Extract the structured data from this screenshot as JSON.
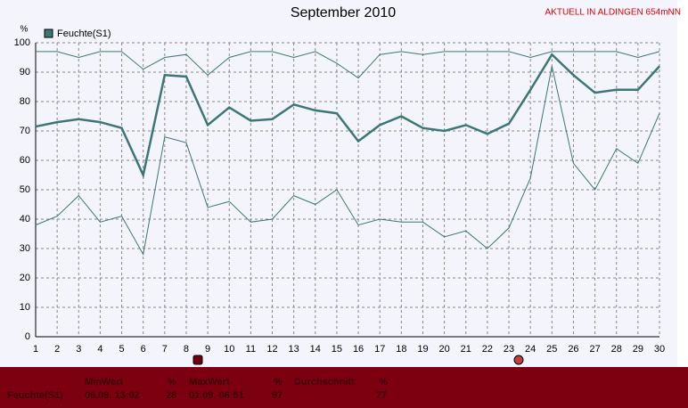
{
  "chart_data": {
    "type": "line",
    "title": "September 2010",
    "annotation": "AKTUELL IN ALDINGEN 654mNN",
    "y_label": "%",
    "x": [
      1,
      2,
      3,
      4,
      5,
      6,
      7,
      8,
      9,
      10,
      11,
      12,
      13,
      14,
      15,
      16,
      17,
      18,
      19,
      20,
      21,
      22,
      23,
      24,
      25,
      26,
      27,
      28,
      29,
      30
    ],
    "xlim": [
      1,
      30
    ],
    "xticks": [
      1,
      2,
      3,
      4,
      5,
      6,
      7,
      8,
      9,
      10,
      11,
      12,
      13,
      14,
      15,
      16,
      17,
      18,
      19,
      20,
      21,
      22,
      23,
      24,
      25,
      26,
      27,
      28,
      29,
      30
    ],
    "ylim": [
      0,
      100
    ],
    "yticks": [
      0,
      10,
      20,
      30,
      40,
      50,
      60,
      70,
      80,
      90,
      100
    ],
    "grid": true,
    "legend": "top-left",
    "series": [
      {
        "name": "Feuchte(S1)",
        "color": "#3b7775",
        "values": [
          71.5,
          73,
          74,
          73,
          71,
          55,
          89,
          88.5,
          72,
          78,
          73.5,
          74,
          79,
          77,
          76,
          66.5,
          72,
          75,
          71,
          70,
          72,
          69,
          72.5,
          84,
          96,
          89,
          83,
          84,
          84,
          92
        ],
        "max_values": [
          97,
          97,
          95,
          97,
          97,
          91,
          95,
          96,
          89,
          95,
          97,
          97,
          95,
          97,
          93,
          88,
          96,
          97,
          96,
          97,
          97,
          97,
          97,
          95,
          97,
          97,
          97,
          97,
          95,
          97
        ],
        "min_values": [
          38,
          41,
          48,
          39,
          41,
          28,
          68,
          66,
          44,
          46,
          39,
          40,
          48,
          45,
          50,
          38,
          40,
          39,
          39,
          34,
          36,
          30,
          37,
          54,
          92,
          59,
          50,
          64,
          59,
          76
        ]
      }
    ]
  },
  "stats": {
    "headers": [
      "MinWert",
      "%",
      "MaxWert",
      "%",
      "Durchschnitt",
      "%"
    ],
    "row": {
      "label": "Feuchte(S1)",
      "cells": [
        "06.09. 13:02",
        28,
        "01.09. 06:51",
        97,
        77
      ]
    }
  }
}
